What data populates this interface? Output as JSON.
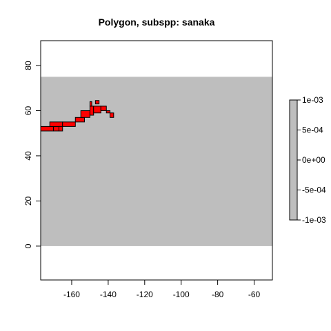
{
  "chart_data": {
    "type": "heatmap",
    "title": "Polygon, subspp: sanaka",
    "xlabel": "",
    "ylabel": "",
    "xlim": [
      -177,
      -50
    ],
    "ylim": [
      -15,
      91
    ],
    "x_ticks": [
      -160,
      -140,
      -120,
      -100,
      -80,
      -60
    ],
    "y_ticks": [
      0,
      20,
      40,
      60,
      80
    ],
    "grid": false,
    "raster_extent": {
      "x": [
        -177,
        -50
      ],
      "y": [
        0,
        75
      ]
    },
    "raster_color": "#bebebe",
    "polygon_fill": "#ff0000",
    "polygon_cells": [
      [
        -177,
        51,
        -170,
        53
      ],
      [
        -170,
        51,
        -167,
        53
      ],
      [
        -172,
        53,
        -165,
        55
      ],
      [
        -167,
        51,
        -165,
        53
      ],
      [
        -165,
        53,
        -158,
        55
      ],
      [
        -158,
        55,
        -153,
        57
      ],
      [
        -155,
        57,
        -150,
        60
      ],
      [
        -150,
        58,
        -148,
        62
      ],
      [
        -150,
        62,
        -149,
        64
      ],
      [
        -148,
        59,
        -144,
        62
      ],
      [
        -144,
        60,
        -141,
        62
      ],
      [
        -147,
        63,
        -145,
        64.5
      ],
      [
        -141,
        59,
        -139,
        60
      ],
      [
        -139,
        57,
        -137,
        59
      ]
    ],
    "legend": {
      "position": "right",
      "ticks": [
        "1e-03",
        "5e-04",
        "0e+00",
        "-5e-04",
        "-1e-03"
      ],
      "color": "#bebebe"
    }
  }
}
